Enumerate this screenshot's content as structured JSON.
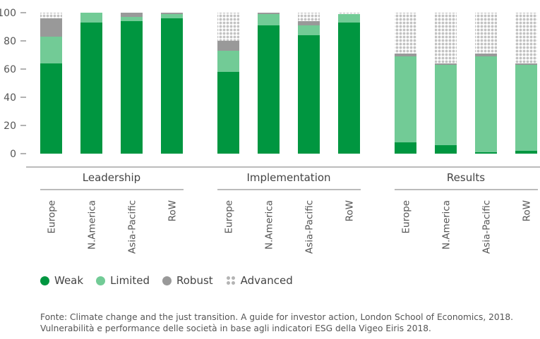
{
  "chart_data": {
    "type": "bar",
    "stacked": true,
    "yticks": [
      0,
      20,
      40,
      60,
      80,
      100
    ],
    "ylim": [
      0,
      100
    ],
    "groups": [
      {
        "label": "Leadership",
        "categories": [
          "Europe",
          "N.America",
          "Asia-Pacific",
          "RoW"
        ]
      },
      {
        "label": "Implementation",
        "categories": [
          "Europe",
          "N.America",
          "Asia-Pacific",
          "RoW"
        ]
      },
      {
        "label": "Results",
        "categories": [
          "Europe",
          "N.America",
          "Asia-Pacific",
          "RoW"
        ]
      }
    ],
    "series": [
      {
        "name": "Weak",
        "color": "#009640",
        "values": [
          [
            64,
            93,
            94,
            96
          ],
          [
            58,
            91,
            84,
            93
          ],
          [
            8,
            6,
            1,
            2
          ]
        ]
      },
      {
        "name": "Limited",
        "color": "#72cb96",
        "values": [
          [
            19,
            7,
            3,
            3
          ],
          [
            15,
            8,
            7,
            6
          ],
          [
            61,
            57,
            68,
            61
          ]
        ]
      },
      {
        "name": "Robust",
        "color": "#999999",
        "values": [
          [
            13,
            0,
            3,
            1
          ],
          [
            7,
            1,
            3,
            0
          ],
          [
            2,
            1,
            2,
            1
          ]
        ]
      },
      {
        "name": "Advanced",
        "color": "#c8c8c8",
        "pattern": "dots",
        "values": [
          [
            4,
            0,
            0,
            0
          ],
          [
            20,
            0,
            6,
            1
          ],
          [
            29,
            36,
            29,
            36
          ]
        ]
      }
    ],
    "legend_position": "bottom-left",
    "grid": false
  },
  "source_lines": [
    "Fonte: Climate change and the just transition. A guide for investor action, London School of Economics, 2018.",
    "Vulnerabilità e performance delle società in base agli indicatori ESG della Vigeo Eiris 2018."
  ]
}
